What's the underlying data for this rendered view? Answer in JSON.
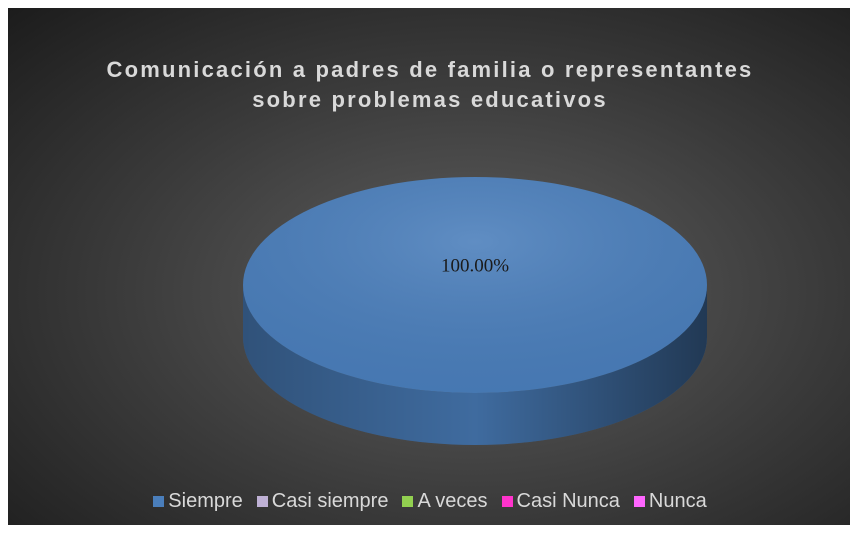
{
  "chart_data": {
    "type": "pie",
    "title": "Comunicación a padres de familia o representantes sobre problemas educativos",
    "categories": [
      "Siempre",
      "Casi siempre",
      "A veces",
      "Casi Nunca",
      "Nunca"
    ],
    "values": [
      100,
      0,
      0,
      0,
      0
    ],
    "value_labels": [
      "100.00%",
      null,
      null,
      null,
      null
    ],
    "colors": [
      "#4a7ebb",
      "#bfb1d5",
      "#92d050",
      "#ff33cc",
      "#ff66ff"
    ],
    "legend": "bottom"
  }
}
